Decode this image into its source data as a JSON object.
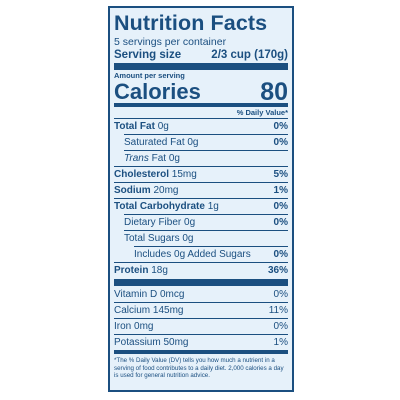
{
  "label": {
    "title": "Nutrition Facts",
    "servings": "5 servings per container",
    "serving_size": {
      "label": "Serving size",
      "value": "2/3 cup (170g)"
    },
    "amount_per_serving": "Amount per serving",
    "calories": {
      "label": "Calories",
      "value": "80"
    },
    "daily_value_header": "% Daily Value*",
    "nutrients": [
      {
        "name": "Total Fat",
        "amount": "0g",
        "dv": "0%",
        "bold": true,
        "indent": 0
      },
      {
        "name": "Saturated Fat",
        "amount": "0g",
        "dv": "0%",
        "bold": false,
        "indent": 1
      },
      {
        "prefix": "Trans",
        "name": "Fat",
        "amount": "0g",
        "bold": false,
        "indent": 1
      },
      {
        "name": "Cholesterol",
        "amount": "15mg",
        "dv": "5%",
        "bold": true,
        "indent": 0
      },
      {
        "name": "Sodium",
        "amount": "20mg",
        "dv": "1%",
        "bold": true,
        "indent": 0
      },
      {
        "name": "Total Carbohydrate",
        "amount": "1g",
        "dv": "0%",
        "bold": true,
        "indent": 0
      },
      {
        "name": "Dietary Fiber",
        "amount": "0g",
        "dv": "0%",
        "bold": false,
        "indent": 1
      },
      {
        "name": "Total Sugars",
        "amount": "0g",
        "bold": false,
        "indent": 1
      },
      {
        "name": "Includes 0g Added Sugars",
        "dv": "0%",
        "bold": false,
        "indent": 2
      },
      {
        "name": "Protein",
        "amount": "18g",
        "dv": "36%",
        "bold": true,
        "indent": 0
      }
    ],
    "vitamins": [
      {
        "name": "Vitamin D",
        "amount": "0mcg",
        "dv": "0%"
      },
      {
        "name": "Calcium",
        "amount": "145mg",
        "dv": "11%"
      },
      {
        "name": "Iron",
        "amount": "0mg",
        "dv": "0%"
      },
      {
        "name": "Potassium",
        "amount": "50mg",
        "dv": "1%"
      }
    ],
    "footnote": "*The % Daily Value (DV) tells you how much a nutrient in a serving of food contributes to a daily diet. 2,000 calories a day is used for general nutrition advice."
  }
}
